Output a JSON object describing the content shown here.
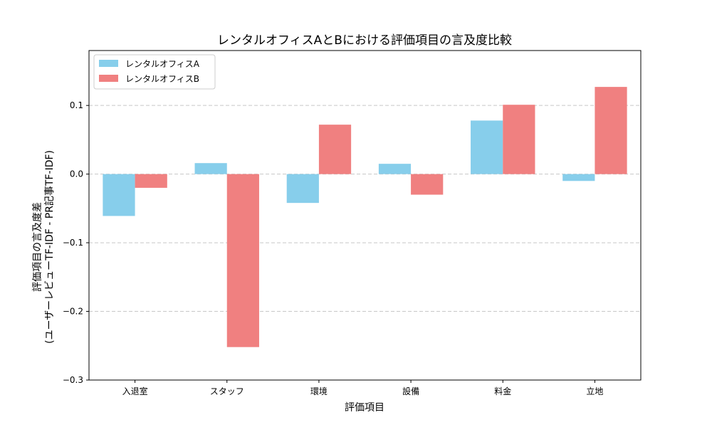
{
  "chart_data": {
    "type": "bar",
    "title": "レンタルオフィスAとBにおける評価項目の言及度比較",
    "xlabel": "評価項目",
    "ylabel_lines": [
      "評価項目の言及度差",
      "(ユーザーレビューTF-IDF - PR記事TF-IDF)"
    ],
    "categories": [
      "入退室",
      "スタッフ",
      "環境",
      "設備",
      "料金",
      "立地"
    ],
    "series": [
      {
        "name": "レンタルオフィスA",
        "color": "#87CEEB",
        "values": [
          -0.061,
          0.016,
          -0.042,
          0.015,
          0.078,
          -0.01
        ]
      },
      {
        "name": "レンタルオフィスB",
        "color": "#F08080",
        "values": [
          -0.02,
          -0.252,
          0.072,
          -0.03,
          0.101,
          0.127
        ]
      }
    ],
    "ylim": [
      -0.3,
      0.18
    ],
    "yticks": [
      -0.3,
      -0.2,
      -0.1,
      0.0,
      0.1
    ],
    "ytick_labels": [
      "−0.3",
      "−0.2",
      "−0.1",
      "0.0",
      "0.1"
    ],
    "grid": "horizontal dashed",
    "legend_position": "top-left"
  }
}
